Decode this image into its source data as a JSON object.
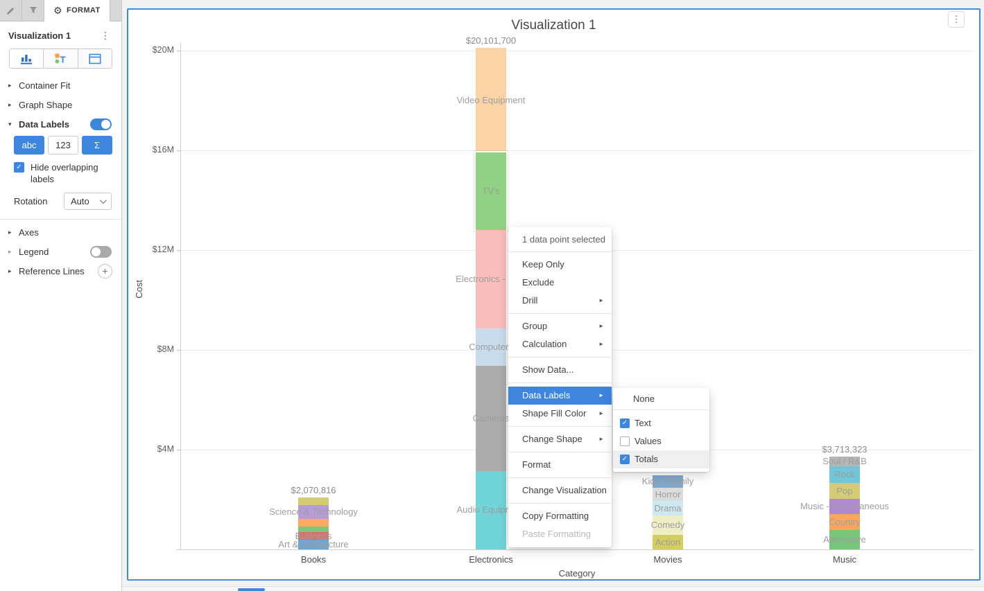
{
  "colors": {
    "accent": "#3c86e0",
    "panel_border": "#3d8edd"
  },
  "app": {
    "format_tab": "FORMAT",
    "panel_title": "Visualization 1",
    "sidebar": {
      "container_fit": "Container Fit",
      "graph_shape": "Graph Shape",
      "data_labels": "Data Labels",
      "abc_btn": "abc",
      "num_btn": "123",
      "sigma_btn": "Σ",
      "hide_overlapping": "Hide overlapping labels",
      "rotation_label": "Rotation",
      "rotation_value": "Auto",
      "axes": "Axes",
      "legend": "Legend",
      "reference_lines": "Reference Lines"
    }
  },
  "context_menu": {
    "header": "1 data point selected",
    "items": [
      {
        "label": "Keep Only"
      },
      {
        "label": "Exclude"
      },
      {
        "label": "Drill",
        "arrow": true
      },
      {
        "type": "divider"
      },
      {
        "label": "Group",
        "arrow": true
      },
      {
        "label": "Calculation",
        "arrow": true
      },
      {
        "type": "divider"
      },
      {
        "label": "Show Data..."
      },
      {
        "type": "divider"
      },
      {
        "label": "Data Labels",
        "arrow": true,
        "highlighted": true
      },
      {
        "label": "Shape Fill Color",
        "arrow": true
      },
      {
        "type": "divider"
      },
      {
        "label": "Change Shape",
        "arrow": true
      },
      {
        "type": "divider"
      },
      {
        "label": "Format"
      },
      {
        "type": "divider"
      },
      {
        "label": "Change Visualization"
      },
      {
        "type": "divider"
      },
      {
        "label": "Copy Formatting"
      },
      {
        "label": "Paste Formatting",
        "disabled": true
      }
    ]
  },
  "submenu": {
    "items": [
      {
        "type": "plain",
        "label": "None"
      },
      {
        "type": "divider"
      },
      {
        "type": "checkbox",
        "label": "Text",
        "checked": true
      },
      {
        "type": "checkbox",
        "label": "Values",
        "checked": false
      },
      {
        "type": "checkbox",
        "label": "Totals",
        "checked": true,
        "hover": true
      }
    ]
  },
  "chart_data": {
    "type": "bar",
    "stacked": true,
    "title": "Visualization 1",
    "xlabel": "Category",
    "ylabel": "Cost",
    "ylim": [
      0,
      21600000
    ],
    "grid": "horizontal",
    "legend": "off",
    "yticks": [
      {
        "label": "$4M",
        "value": 4000000
      },
      {
        "label": "$8M",
        "value": 8000000
      },
      {
        "label": "$12M",
        "value": 12000000
      },
      {
        "label": "$16M",
        "value": 16000000
      },
      {
        "label": "$20M",
        "value": 20000000
      }
    ],
    "categories": [
      "Books",
      "Electronics",
      "Movies",
      "Music"
    ],
    "bars": [
      {
        "category": "Books",
        "total_label": "$2,070,816",
        "segments": [
          {
            "label": "",
            "value": 280000,
            "color": "#d3cc74"
          },
          {
            "label": "Science & Technology",
            "value": 580000,
            "color": "#b69cd8"
          },
          {
            "label": "",
            "value": 300000,
            "color": "#fbab60"
          },
          {
            "label": "",
            "value": 220000,
            "color": "#7dc87e"
          },
          {
            "label": "Business",
            "value": 300000,
            "color": "#dd6f69"
          },
          {
            "label": "Art & Architecture",
            "value": 390816,
            "color": "#6fa6d1"
          }
        ]
      },
      {
        "category": "Electronics",
        "total_label": "$20,101,700",
        "segments": [
          {
            "label": "Video Equipment",
            "value": 4190000,
            "color": "#fbd3a4"
          },
          {
            "label": "TV's",
            "value": 3100000,
            "color": "#8fd281",
            "selected": true
          },
          {
            "label": "Electronics - Misc",
            "value": 3960000,
            "color": "#f9bdba"
          },
          {
            "label": "Computers",
            "value": 1500000,
            "color": "#c9dced"
          },
          {
            "label": "Cameras",
            "value": 4201700,
            "color": "#acacac"
          },
          {
            "label": "Audio Equipment",
            "value": 3150000,
            "color": "#70d5d8"
          }
        ]
      },
      {
        "category": "Movies",
        "total_label": null,
        "segments": [
          {
            "label": "Kids / Family",
            "value": 500000,
            "color": "#7fa8cc"
          },
          {
            "label": "Horror",
            "value": 525000,
            "color": "#dcdcdc"
          },
          {
            "label": "Drama",
            "value": 580000,
            "color": "#cce9f2"
          },
          {
            "label": "Comedy",
            "value": 775000,
            "color": "#eeeec6"
          },
          {
            "label": "Action",
            "value": 580000,
            "color": "#d4ce62"
          }
        ]
      },
      {
        "category": "Music",
        "total_label": "$3,713,323",
        "segments": [
          {
            "label": "Soul / R&B",
            "value": 368323,
            "color": "#b5b5b5"
          },
          {
            "label": "Rock",
            "value": 690000,
            "color": "#6ec6d8"
          },
          {
            "label": "Pop",
            "value": 635000,
            "color": "#d3cc74"
          },
          {
            "label": "Music - Miscellaneous",
            "value": 610000,
            "color": "#b287d3"
          },
          {
            "label": "Country",
            "value": 635000,
            "color": "#f9a75e"
          },
          {
            "label": "Alternative",
            "value": 775000,
            "color": "#76c578"
          }
        ]
      }
    ]
  }
}
